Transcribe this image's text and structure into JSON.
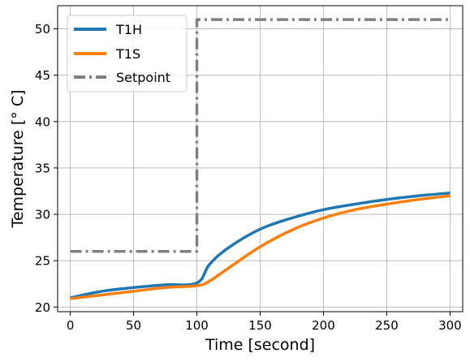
{
  "chart_data": {
    "type": "line",
    "xlabel": "Time [second]",
    "ylabel": "Temperature [° C]",
    "xlim": [
      -10,
      310
    ],
    "ylim": [
      19.5,
      52.5
    ],
    "xticks": [
      0,
      50,
      100,
      150,
      200,
      250,
      300
    ],
    "yticks": [
      20,
      25,
      30,
      35,
      40,
      45,
      50
    ],
    "grid": true,
    "legend_position": "top-left",
    "series": [
      {
        "name": "T1H",
        "color": "#1f77b4",
        "style": "solid",
        "x": [
          0,
          25,
          50,
          75,
          100,
          110,
          125,
          150,
          175,
          200,
          225,
          250,
          275,
          300
        ],
        "y": [
          21.0,
          21.7,
          22.1,
          22.4,
          22.6,
          24.6,
          26.4,
          28.4,
          29.6,
          30.5,
          31.1,
          31.6,
          32.0,
          32.3
        ]
      },
      {
        "name": "T1S",
        "color": "#ff7f0e",
        "style": "solid",
        "x": [
          0,
          25,
          50,
          75,
          100,
          110,
          125,
          150,
          175,
          200,
          225,
          250,
          275,
          300
        ],
        "y": [
          20.9,
          21.3,
          21.7,
          22.1,
          22.3,
          22.8,
          24.2,
          26.5,
          28.3,
          29.6,
          30.5,
          31.1,
          31.6,
          32.0
        ]
      },
      {
        "name": "Setpoint",
        "color": "#808080",
        "style": "dashdot",
        "x": [
          0,
          100,
          100,
          300
        ],
        "y": [
          26,
          26,
          51,
          51
        ]
      }
    ]
  }
}
